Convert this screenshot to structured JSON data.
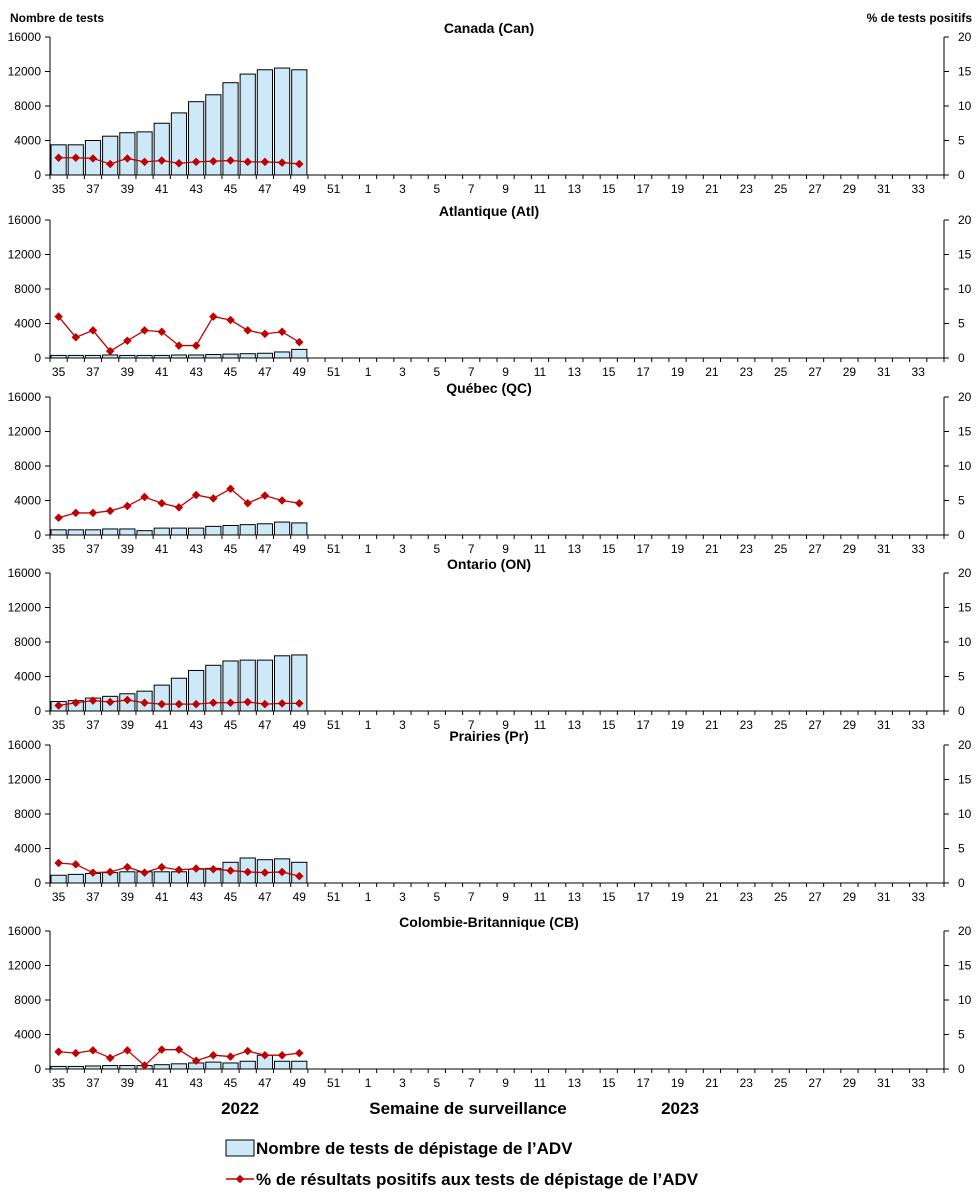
{
  "chart_data": {
    "type": "bar+line",
    "y_left_label": "Nombre de tests",
    "y_right_label": "% de tests positifs",
    "x_title": "Semaine de surveillance",
    "year_labels": [
      "2022",
      "2023"
    ],
    "week_categories": [
      "35",
      "36",
      "37",
      "38",
      "39",
      "40",
      "41",
      "42",
      "43",
      "44",
      "45",
      "46",
      "47",
      "48",
      "49",
      "50",
      "51",
      "52",
      "1",
      "2",
      "3",
      "4",
      "5",
      "6",
      "7",
      "8",
      "9",
      "10",
      "11",
      "12",
      "13",
      "14",
      "15",
      "16",
      "17",
      "18",
      "19",
      "20",
      "21",
      "22",
      "23",
      "24",
      "25",
      "26",
      "27",
      "28",
      "29",
      "30",
      "31",
      "32",
      "33",
      "34"
    ],
    "x_tick_labels": [
      "35",
      "37",
      "39",
      "41",
      "43",
      "45",
      "47",
      "49",
      "51",
      "1",
      "3",
      "5",
      "7",
      "9",
      "11",
      "13",
      "15",
      "17",
      "19",
      "21",
      "23",
      "25",
      "27",
      "29",
      "31",
      "33"
    ],
    "y_left_ticks": [
      "0",
      "4000",
      "8000",
      "12000",
      "16000"
    ],
    "y_right_ticks": [
      "0",
      "5",
      "10",
      "15",
      "20"
    ],
    "ylim_left": [
      0,
      16000
    ],
    "ylim_right": [
      0,
      20
    ],
    "legend": {
      "bars": "Nombre de tests de dépistage de l’ADV",
      "line": "% de résultats positifs aux tests de dépistage de l’ADV"
    },
    "colors": {
      "bar_fill": "#cde9f7",
      "bar_stroke": "#000000",
      "line": "#c00000"
    },
    "panels": [
      {
        "title": "Canada (Can)",
        "tests": [
          3500,
          3500,
          4000,
          4500,
          4900,
          5000,
          6000,
          7200,
          8500,
          9300,
          10700,
          11700,
          12200,
          12400,
          12200
        ],
        "pct_positive": [
          2.5,
          2.5,
          2.4,
          1.6,
          2.4,
          1.9,
          2.1,
          1.7,
          1.9,
          2.0,
          2.1,
          1.9,
          1.9,
          1.8,
          1.6
        ]
      },
      {
        "title": "Atlantique (Atl)",
        "tests": [
          300,
          300,
          300,
          350,
          300,
          300,
          300,
          350,
          350,
          400,
          450,
          500,
          550,
          700,
          1000
        ],
        "pct_positive": [
          6.0,
          3.0,
          4.0,
          1.0,
          2.5,
          4.0,
          3.8,
          1.8,
          1.8,
          6.0,
          5.5,
          4.0,
          3.5,
          3.8,
          2.3
        ]
      },
      {
        "title": "Québec (QC)",
        "tests": [
          600,
          600,
          600,
          700,
          700,
          500,
          800,
          800,
          800,
          1000,
          1100,
          1200,
          1300,
          1500,
          1400
        ],
        "pct_positive": [
          2.5,
          3.2,
          3.2,
          3.5,
          4.2,
          5.5,
          4.6,
          4.0,
          5.8,
          5.3,
          6.7,
          4.6,
          5.7,
          5.0,
          4.6
        ]
      },
      {
        "title": "Ontario (ON)",
        "tests": [
          1100,
          1200,
          1500,
          1700,
          2000,
          2300,
          3000,
          3800,
          4700,
          5300,
          5800,
          5900,
          5900,
          6400,
          6500
        ],
        "pct_positive": [
          0.8,
          1.2,
          1.5,
          1.3,
          1.6,
          1.2,
          1.0,
          1.0,
          1.0,
          1.2,
          1.2,
          1.3,
          1.0,
          1.1,
          1.1
        ]
      },
      {
        "title": "Prairies (Pr)",
        "tests": [
          900,
          1000,
          1100,
          1200,
          1300,
          1300,
          1300,
          1300,
          1600,
          1700,
          2400,
          2900,
          2700,
          2800,
          2400
        ],
        "pct_positive": [
          2.9,
          2.7,
          1.5,
          1.6,
          2.3,
          1.5,
          2.3,
          1.9,
          2.1,
          2.0,
          1.8,
          1.6,
          1.5,
          1.6,
          1.0
        ]
      },
      {
        "title": "Colombie-Britannique (CB)",
        "tests": [
          300,
          300,
          350,
          400,
          400,
          400,
          500,
          600,
          700,
          800,
          700,
          900,
          1600,
          900,
          900
        ],
        "pct_positive": [
          2.5,
          2.3,
          2.7,
          1.6,
          2.7,
          0.5,
          2.8,
          2.8,
          1.2,
          2.0,
          1.8,
          2.6,
          2.0,
          2.0,
          2.3
        ]
      }
    ]
  }
}
